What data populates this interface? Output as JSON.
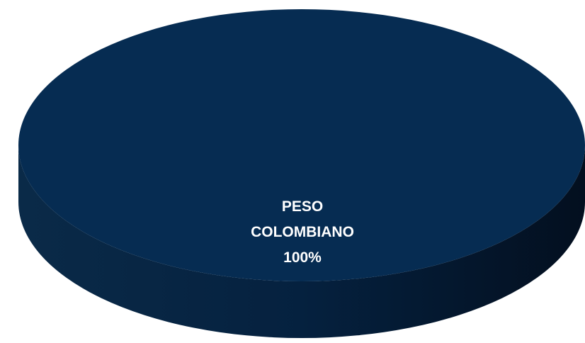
{
  "chart_data": {
    "type": "pie",
    "style": "3d",
    "slices": [
      {
        "label": "PESO COLOMBIANO",
        "label_lines": [
          "PESO",
          "COLOMBIANO"
        ],
        "value": 100,
        "value_label": "100%",
        "color": "#062c52"
      }
    ]
  }
}
